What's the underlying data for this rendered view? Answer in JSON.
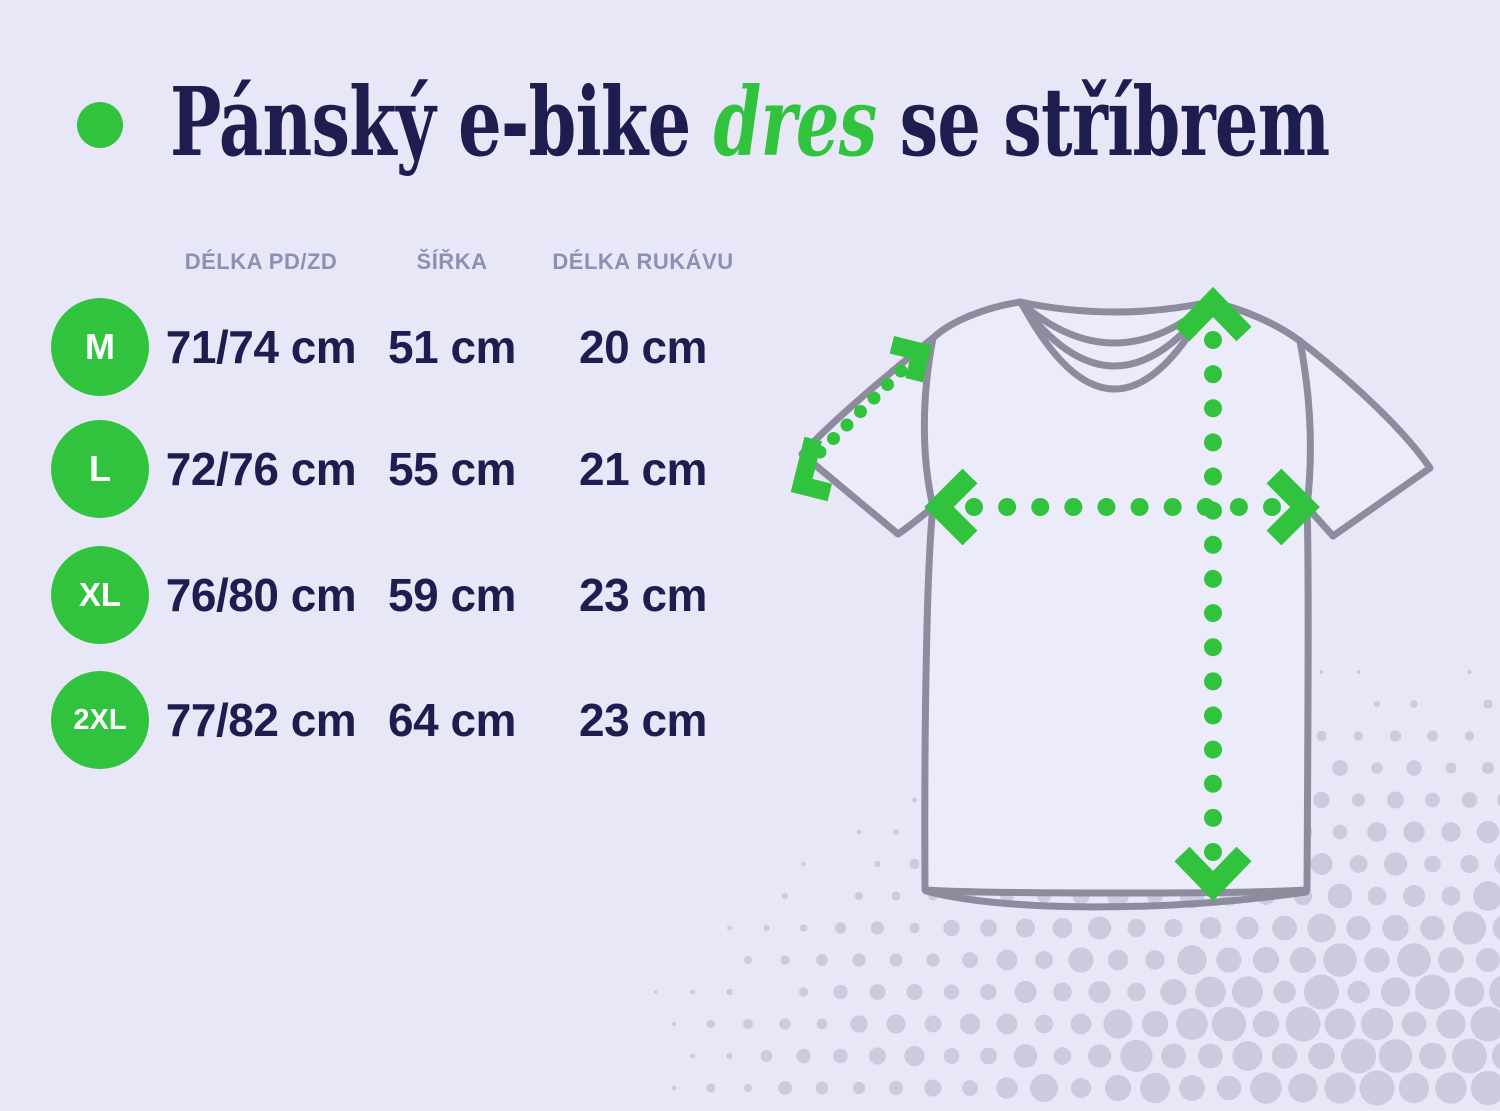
{
  "page": {
    "background": "#e7e7f8",
    "accent_green": "#32c33e",
    "navy": "#1d1d4f",
    "outline_gray": "#8c8c9e",
    "muted_header": "#8f8fb2",
    "halftone_dot": "#cbcbdd",
    "shirt_fill": "#ebebfa"
  },
  "title": {
    "prefix": "Pánský e-bike ",
    "highlight": "dres",
    "suffix": " se stříbrem"
  },
  "size_table": {
    "columns": [
      "DÉLKA PD/ZD",
      "ŠÍŘKA",
      "DÉLKA RUKÁVU"
    ],
    "rows": [
      {
        "size": "M",
        "length": "71/74 cm",
        "width": "51 cm",
        "sleeve": "20 cm"
      },
      {
        "size": "L",
        "length": "72/76 cm",
        "width": "55 cm",
        "sleeve": "21 cm"
      },
      {
        "size": "XL",
        "length": "76/80 cm",
        "width": "59 cm",
        "sleeve": "23 cm"
      },
      {
        "size": "2XL",
        "length": "77/82 cm",
        "width": "64 cm",
        "sleeve": "23 cm"
      }
    ]
  },
  "diagram": {
    "subject": "t-shirt outline with measurement arrows",
    "measures": [
      {
        "name": "length",
        "direction": "vertical"
      },
      {
        "name": "width",
        "direction": "horizontal"
      },
      {
        "name": "sleeve-length",
        "direction": "diagonal"
      }
    ]
  }
}
